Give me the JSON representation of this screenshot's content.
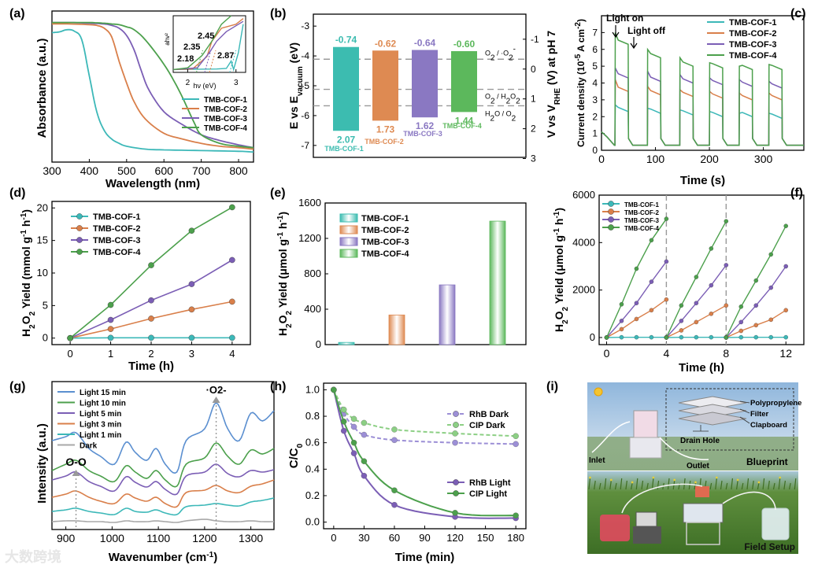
{
  "chart_data": [
    {
      "panel": "(a)",
      "type": "line",
      "xlabel": "Wavelength (nm)",
      "ylabel": "Absorbance (a.u.)",
      "xlim": [
        300,
        840
      ],
      "xticks": [
        300,
        400,
        500,
        600,
        700,
        800
      ],
      "series": [
        {
          "name": "TMB-COF-1",
          "color": "#3cb8b8",
          "x": [
            300,
            320,
            340,
            360,
            380,
            400,
            420,
            440,
            460,
            480,
            500,
            550,
            600,
            700,
            800,
            840
          ],
          "y": [
            0.9,
            0.905,
            0.92,
            0.91,
            0.85,
            0.6,
            0.35,
            0.22,
            0.16,
            0.13,
            0.11,
            0.09,
            0.085,
            0.08,
            0.075,
            0.07
          ]
        },
        {
          "name": "TMB-COF-2",
          "color": "#d97f4a",
          "x": [
            300,
            350,
            400,
            420,
            440,
            460,
            480,
            500,
            520,
            550,
            600,
            650,
            700,
            750,
            800,
            840
          ],
          "y": [
            0.96,
            0.96,
            0.955,
            0.95,
            0.93,
            0.87,
            0.7,
            0.55,
            0.42,
            0.3,
            0.2,
            0.16,
            0.13,
            0.11,
            0.1,
            0.09
          ]
        },
        {
          "name": "TMB-COF-3",
          "color": "#7b5eb5",
          "x": [
            300,
            350,
            400,
            440,
            460,
            480,
            500,
            520,
            540,
            560,
            600,
            650,
            700,
            750,
            800,
            840
          ],
          "y": [
            0.97,
            0.97,
            0.965,
            0.96,
            0.95,
            0.93,
            0.88,
            0.78,
            0.63,
            0.5,
            0.35,
            0.26,
            0.19,
            0.15,
            0.12,
            0.1
          ]
        },
        {
          "name": "TMB-COF-4",
          "color": "#4ca04c",
          "x": [
            300,
            350,
            400,
            440,
            460,
            480,
            500,
            520,
            550,
            600,
            640,
            680,
            700,
            750,
            800,
            840
          ],
          "y": [
            0.97,
            0.97,
            0.97,
            0.965,
            0.96,
            0.955,
            0.94,
            0.92,
            0.85,
            0.68,
            0.5,
            0.28,
            0.19,
            0.13,
            0.11,
            0.1
          ]
        }
      ],
      "inset": {
        "xlabel": "hν (eV)",
        "ylabel": "ahv²",
        "xticks": [
          2,
          3
        ],
        "annotations": [
          "2.45",
          "2.35",
          "2.18",
          "2.87"
        ]
      }
    },
    {
      "panel": "(b)",
      "type": "bar",
      "ylabel_left": "E vs E_vacuum (eV)",
      "ylabel_right": "V vs V_RHE (V) at pH 7",
      "left_ticks": [
        -3,
        -4,
        -5,
        -6,
        -7
      ],
      "right_ticks": [
        -1,
        0,
        1,
        2,
        3
      ],
      "categories": [
        "TMB-COF-1",
        "TMB-COF-2",
        "TMB-COF-3",
        "TMB-COF-4"
      ],
      "cb_rhe": [
        -0.74,
        -0.62,
        -0.64,
        -0.6
      ],
      "vb_rhe": [
        2.07,
        1.73,
        1.62,
        1.44
      ],
      "cb_labels": [
        "-0.74",
        "-0.62",
        "-0.64",
        "-0.60"
      ],
      "vb_labels": [
        "2.07",
        "1.73",
        "1.62",
        "1.44"
      ],
      "colors": [
        "#3cbcb0",
        "#de8a52",
        "#8a78c2",
        "#5cb85c"
      ],
      "reference_lines": [
        {
          "label": "O2 / ·O2-",
          "v": -0.33
        },
        {
          "label": "O2 / H2O2",
          "v": 0.68
        },
        {
          "label": "H2O / O2",
          "v": 1.23
        }
      ]
    },
    {
      "panel": "(c)",
      "type": "line",
      "xlabel": "Time (s)",
      "ylabel": "Current density (10-5 A cm-2)",
      "ylim": [
        0,
        8
      ],
      "yticks": [
        0,
        1,
        2,
        3,
        4,
        5,
        6,
        7
      ],
      "xticks": [
        0,
        100,
        200,
        300
      ],
      "annotations": [
        "Light on",
        "Light off"
      ],
      "cycles": [
        [
          25,
          50
        ],
        [
          85,
          110
        ],
        [
          145,
          170
        ],
        [
          200,
          225
        ],
        [
          255,
          280
        ],
        [
          310,
          335
        ]
      ],
      "series": [
        {
          "name": "TMB-COF-1",
          "color": "#3cb8b8",
          "peaks": [
            2.7,
            2.5,
            2.4,
            2.3,
            2.2,
            2.2
          ],
          "plateaus": [
            2.3,
            2.2,
            2.1,
            2.0,
            2.0,
            1.9
          ],
          "dark": 0.3
        },
        {
          "name": "TMB-COF-2",
          "color": "#d97f4a",
          "peaks": [
            4.2,
            3.8,
            3.6,
            3.5,
            3.4,
            3.4
          ],
          "plateaus": [
            3.5,
            3.3,
            3.2,
            3.1,
            3.0,
            3.0
          ],
          "dark": 0.3
        },
        {
          "name": "TMB-COF-3",
          "color": "#7b5eb5",
          "peaks": [
            4.9,
            4.7,
            4.5,
            4.3,
            4.2,
            4.1
          ],
          "plateaus": [
            4.3,
            4.1,
            4.0,
            3.9,
            3.8,
            3.7
          ],
          "dark": 0.3
        },
        {
          "name": "TMB-COF-4",
          "color": "#4ca04c",
          "peaks": [
            7.0,
            6.0,
            5.5,
            5.2,
            5.0,
            5.1
          ],
          "plateaus": [
            6.3,
            5.5,
            5.0,
            4.9,
            4.8,
            4.8
          ],
          "dark": 0.3
        }
      ]
    },
    {
      "panel": "(d)",
      "type": "line",
      "xlabel": "Time (h)",
      "ylabel": "H2O2 Yield (mmol g-1 h-1)",
      "ylim": [
        -1,
        21
      ],
      "yticks": [
        0,
        5,
        10,
        15,
        20
      ],
      "xticks": [
        0,
        1,
        2,
        3,
        4
      ],
      "x": [
        0,
        1,
        2,
        3,
        4
      ],
      "series": [
        {
          "name": "TMB-COF-1",
          "color": "#3cb8b8",
          "values": [
            0,
            0.05,
            0.05,
            0.05,
            0.05
          ]
        },
        {
          "name": "TMB-COF-2",
          "color": "#d97f4a",
          "values": [
            0,
            1.4,
            3.0,
            4.4,
            5.6
          ]
        },
        {
          "name": "TMB-COF-3",
          "color": "#7b5eb5",
          "values": [
            0,
            2.8,
            5.8,
            8.3,
            12.0
          ]
        },
        {
          "name": "TMB-COF-4",
          "color": "#4ca04c",
          "values": [
            0,
            5.1,
            11.2,
            16.5,
            20.1
          ]
        }
      ]
    },
    {
      "panel": "(e)",
      "type": "bar",
      "ylabel": "H2O2 Yield (μmol g-1 h-1)",
      "ylim": [
        0,
        1600
      ],
      "yticks": [
        0,
        400,
        800,
        1200,
        1600
      ],
      "categories": [
        "TMB-COF-1",
        "TMB-COF-2",
        "TMB-COF-3",
        "TMB-COF-4"
      ],
      "values": [
        25,
        335,
        675,
        1395
      ],
      "colors": [
        "#3cbcb0",
        "#de8a52",
        "#8a78c2",
        "#5cb85c"
      ]
    },
    {
      "panel": "(f)",
      "type": "line",
      "xlabel": "Time (h)",
      "ylabel": "H2O2 Yield (μmol g-1 h-1)",
      "ylim": [
        -300,
        6000
      ],
      "yticks": [
        0,
        2000,
        4000,
        6000
      ],
      "xticks": [
        0,
        4,
        8,
        12
      ],
      "cycle_dividers": [
        4,
        8
      ],
      "x": [
        0,
        1,
        2,
        3,
        4
      ],
      "series": [
        {
          "name": "TMB-COF-1",
          "color": "#3cb8b8",
          "cycles": [
            [
              0,
              10,
              10,
              10,
              10
            ],
            [
              0,
              10,
              10,
              10,
              10
            ],
            [
              0,
              10,
              10,
              10,
              10
            ]
          ]
        },
        {
          "name": "TMB-COF-2",
          "color": "#d97f4a",
          "cycles": [
            [
              0,
              350,
              780,
              1150,
              1600
            ],
            [
              0,
              300,
              650,
              1000,
              1350
            ],
            [
              0,
              280,
              520,
              750,
              1150
            ]
          ]
        },
        {
          "name": "TMB-COF-3",
          "color": "#7b5eb5",
          "cycles": [
            [
              0,
              700,
              1450,
              2350,
              3200
            ],
            [
              0,
              700,
              1450,
              2200,
              3050
            ],
            [
              0,
              650,
              1350,
              2100,
              3000
            ]
          ]
        },
        {
          "name": "TMB-COF-4",
          "color": "#4ca04c",
          "cycles": [
            [
              0,
              1400,
              2900,
              4100,
              5000
            ],
            [
              0,
              1350,
              2550,
              3750,
              4900
            ],
            [
              0,
              1300,
              2400,
              3500,
              4700
            ]
          ]
        }
      ]
    },
    {
      "panel": "(g)",
      "type": "line",
      "xlabel": "Wavenumber (cm-1)",
      "ylabel": "Intensity (a.u.)",
      "xlim": [
        870,
        1350
      ],
      "xticks": [
        900,
        1000,
        1100,
        1200,
        1300
      ],
      "annotations": [
        "O-O",
        "·O2-"
      ],
      "series": [
        {
          "name": "Light 15 min",
          "color": "#5b8fd0"
        },
        {
          "name": "Light 10 min",
          "color": "#4ca04c"
        },
        {
          "name": "Light 5 min",
          "color": "#7b5eb5"
        },
        {
          "name": "Light 3 min",
          "color": "#d97f4a"
        },
        {
          "name": "Light 1 min",
          "color": "#3cb8b8"
        },
        {
          "name": "Dark",
          "color": "#a8a8a8"
        }
      ]
    },
    {
      "panel": "(h)",
      "type": "line",
      "xlabel": "Time (min)",
      "ylabel": "C/C0",
      "ylim": [
        -0.05,
        1.05
      ],
      "yticks": [
        0.0,
        0.2,
        0.4,
        0.6,
        0.8,
        1.0
      ],
      "xticks": [
        0,
        30,
        60,
        90,
        120,
        150,
        180
      ],
      "x": [
        0,
        10,
        20,
        30,
        60,
        120,
        180
      ],
      "series": [
        {
          "name": "RhB Dark",
          "color": "#9c8fd6",
          "style": "dashed",
          "values": [
            1.0,
            0.82,
            0.72,
            0.66,
            0.62,
            0.6,
            0.59
          ]
        },
        {
          "name": "CIP  Dark",
          "color": "#8ccf84",
          "style": "dashed",
          "values": [
            1.0,
            0.85,
            0.78,
            0.75,
            0.7,
            0.67,
            0.65
          ]
        },
        {
          "name": "RhB Light",
          "color": "#7b5eb5",
          "style": "solid",
          "values": [
            1.0,
            0.69,
            0.52,
            0.35,
            0.13,
            0.04,
            0.03
          ]
        },
        {
          "name": "CIP  Light",
          "color": "#4ca04c",
          "style": "solid",
          "values": [
            1.0,
            0.76,
            0.6,
            0.46,
            0.24,
            0.07,
            0.05
          ]
        }
      ]
    }
  ],
  "panel_i": {
    "label": "(i)",
    "blueprint_title": "Blueprint",
    "field_title": "Field Setup",
    "parts": [
      "Polypropylene",
      "Filter",
      "Clapboard",
      "Drain Hole"
    ],
    "inlet": "Inlet",
    "outlet": "Outlet"
  },
  "watermark": "大数跨境"
}
